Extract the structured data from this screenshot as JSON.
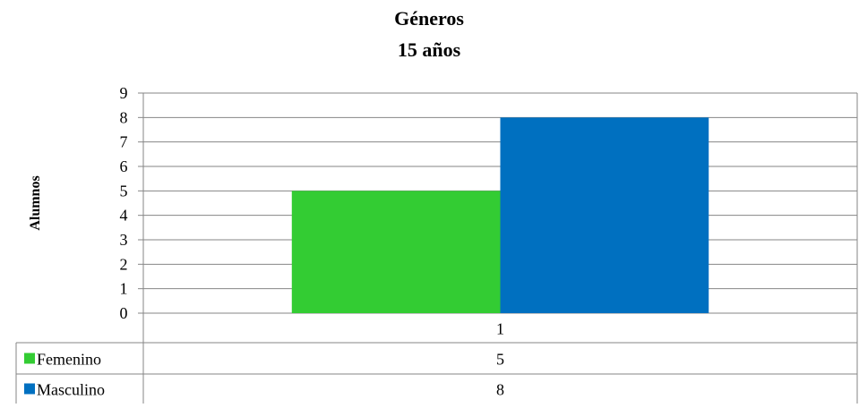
{
  "chart_data": {
    "type": "bar",
    "title": "Géneros",
    "subtitle": "15 años",
    "xlabel": "",
    "ylabel": "Alumnos",
    "categories": [
      "1"
    ],
    "series": [
      {
        "name": "Femenino",
        "values": [
          5
        ],
        "color": "#33cc33"
      },
      {
        "name": "Masculino",
        "values": [
          8
        ],
        "color": "#0070c0"
      }
    ],
    "ylim": [
      0,
      9
    ],
    "yticks": [
      0,
      1,
      2,
      3,
      4,
      5,
      6,
      7,
      8,
      9
    ],
    "grid": true,
    "legend": "data-table"
  }
}
